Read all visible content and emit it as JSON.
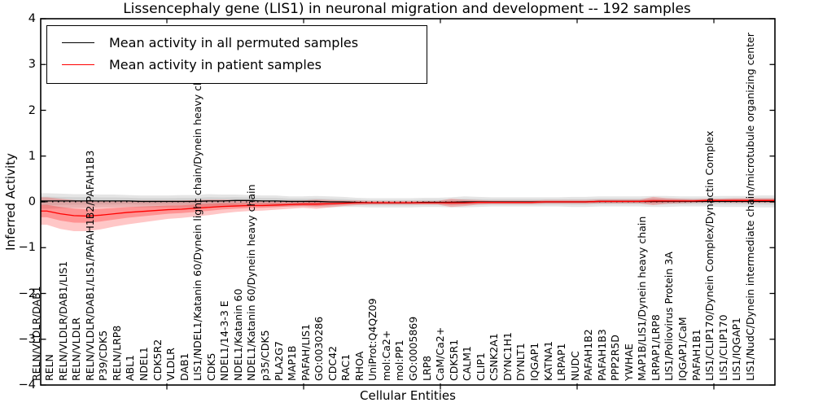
{
  "chart_data": {
    "type": "line",
    "title": "Lissencephaly gene (LIS1) in neuronal migration and development -- 192 samples",
    "xlabel": "Cellular Entities",
    "ylabel": "Inferred Activity",
    "ylim": [
      -4,
      4
    ],
    "yticks": [
      "4",
      "3",
      "2",
      "1",
      "0",
      "−1",
      "−2",
      "−3",
      "−4"
    ],
    "grid": false,
    "zero_line": "dotted",
    "legend_position": "upper left",
    "categories": [
      "RELN/VLDLR/DAB1",
      "RELN",
      "RELN/VLDLR/DAB1/LIS1",
      "RELN/VLDLR",
      "RELN/VLDLR/DAB1/LIS1/PAFAH1B2/PAFAH1B3",
      "P39/CDK5",
      "RELN/LRP8",
      "ABL1",
      "NDEL1",
      "CDK5R2",
      "VLDLR",
      "DAB1",
      "LIS1/NDEL1/Katanin 60/Dynein light chain/Dynein heavy chain",
      "CDK5",
      "NDEL1/14-3-3 E",
      "NDEL1/Katanin 60",
      "NDEL1/Katanin 60/Dynein heavy chain",
      "p35/CDK5",
      "PLA2G7",
      "MAP1B",
      "PAFAH/LIS1",
      "GO:0030286",
      "CDC42",
      "RAC1",
      "RHOA",
      "UniProt:Q4QZ09",
      "mol:Ca2+",
      "mol:PP1",
      "GO:0005869",
      "LRP8",
      "CaM/Ca2+",
      "CDK5R1",
      "CALM1",
      "CLIP1",
      "CSNK2A1",
      "DYNC1H1",
      "DYNLT1",
      "IQGAP1",
      "KATNA1",
      "LRPAP1",
      "NUDC",
      "PAFAH1B2",
      "PAFAH1B3",
      "PPP2R5D",
      "YWHAE",
      "MAP1B/LIS1/Dynein heavy chain",
      "LRPAP1/LRP8",
      "LIS1/Poliovirus Protein 3A",
      "IQGAP1/CaM",
      "PAFAH1B1",
      "LIS1/CLIP170/Dynein Complex/Dynactin Complex",
      "LIS1/CLIP170",
      "LIS1/IQGAP1",
      "LIS1/NudC/Dynein intermediate chain/microtubule organizing center"
    ],
    "series": [
      {
        "name": "Mean activity in all permuted samples",
        "color": "#000000",
        "band_color": "#000000",
        "mean": [
          0.02,
          0.02,
          0.02,
          0.02,
          0.02,
          0.02,
          0.02,
          0.01,
          0.01,
          0.01,
          0.01,
          0.01,
          0.02,
          0.02,
          0.03,
          0.03,
          0.02,
          0.02,
          0.01,
          0.01,
          0.01,
          0.0,
          0.0,
          -0.01,
          -0.02,
          -0.02,
          -0.02,
          -0.02,
          -0.01,
          -0.01,
          -0.01,
          0.0,
          0.0,
          0.0,
          0.0,
          0.0,
          0.0,
          0.0,
          0.0,
          0.0,
          0.0,
          0.01,
          0.01,
          0.01,
          0.01,
          0.01,
          0.01,
          0.01,
          0.01,
          0.01,
          0.01,
          0.01,
          0.01,
          0.01
        ],
        "sd": [
          0.17,
          0.16,
          0.15,
          0.15,
          0.14,
          0.14,
          0.13,
          0.13,
          0.13,
          0.13,
          0.14,
          0.14,
          0.15,
          0.14,
          0.13,
          0.12,
          0.12,
          0.12,
          0.11,
          0.11,
          0.12,
          0.12,
          0.11,
          0.1,
          0.1,
          0.1,
          0.1,
          0.1,
          0.1,
          0.1,
          0.11,
          0.12,
          0.11,
          0.1,
          0.1,
          0.1,
          0.1,
          0.1,
          0.1,
          0.11,
          0.11,
          0.11,
          0.11,
          0.11,
          0.11,
          0.12,
          0.12,
          0.11,
          0.11,
          0.11,
          0.12,
          0.12,
          0.12,
          0.13
        ]
      },
      {
        "name": "Mean activity in patient samples",
        "color": "#ff0000",
        "band_color": "#ff0000",
        "mean": [
          -0.2,
          -0.26,
          -0.3,
          -0.31,
          -0.29,
          -0.26,
          -0.23,
          -0.21,
          -0.19,
          -0.17,
          -0.16,
          -0.14,
          -0.12,
          -0.1,
          -0.09,
          -0.08,
          -0.08,
          -0.07,
          -0.06,
          -0.05,
          -0.05,
          -0.04,
          -0.03,
          -0.02,
          -0.02,
          -0.02,
          -0.02,
          -0.02,
          -0.02,
          -0.02,
          -0.02,
          -0.02,
          -0.01,
          -0.01,
          -0.01,
          -0.01,
          -0.01,
          0.0,
          0.0,
          0.0,
          0.0,
          0.01,
          0.01,
          0.01,
          0.01,
          0.02,
          0.02,
          0.02,
          0.02,
          0.03,
          0.03,
          0.03,
          0.03,
          0.03
        ],
        "sd": [
          0.3,
          0.33,
          0.34,
          0.33,
          0.31,
          0.28,
          0.26,
          0.24,
          0.22,
          0.2,
          0.19,
          0.18,
          0.17,
          0.15,
          0.13,
          0.12,
          0.11,
          0.1,
          0.09,
          0.08,
          0.1,
          0.08,
          0.06,
          0.05,
          0.04,
          0.04,
          0.04,
          0.04,
          0.04,
          0.04,
          0.09,
          0.07,
          0.05,
          0.04,
          0.04,
          0.04,
          0.04,
          0.04,
          0.04,
          0.04,
          0.04,
          0.04,
          0.04,
          0.04,
          0.04,
          0.09,
          0.06,
          0.05,
          0.04,
          0.04,
          0.04,
          0.05,
          0.05,
          0.05
        ]
      }
    ]
  }
}
